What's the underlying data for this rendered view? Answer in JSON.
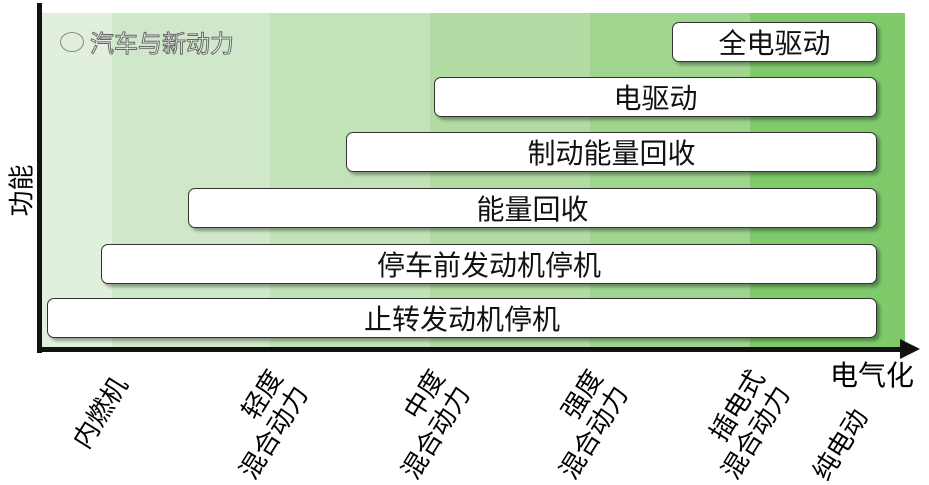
{
  "y_axis_label": "功能",
  "x_axis_label": "电气化",
  "categories": [
    {
      "lines": [
        "内燃机"
      ]
    },
    {
      "lines": [
        "轻度",
        "混合动力"
      ]
    },
    {
      "lines": [
        "中度",
        "混合动力"
      ]
    },
    {
      "lines": [
        "强度",
        "混合动力"
      ]
    },
    {
      "lines": [
        "插电式",
        "混合动力"
      ]
    },
    {
      "lines": [
        "纯电动"
      ]
    }
  ],
  "band_colors": [
    "#e1f0dd",
    "#cfe8c9",
    "#c2e3b7",
    "#b1dba3",
    "#9fd58f",
    "#7fcb6c"
  ],
  "functions": [
    {
      "label": "全电驱动",
      "from_category": "纯电动"
    },
    {
      "label": "电驱动",
      "from_category": "强度混合动力"
    },
    {
      "label": "制动能量回收",
      "from_category": "中度混合动力"
    },
    {
      "label": "能量回收",
      "from_category": "轻度混合动力"
    },
    {
      "label": "停车前发动机停机",
      "from_category": "内燃机"
    },
    {
      "label": "止转发动机停机",
      "from_category": "内燃机"
    }
  ],
  "watermark": {
    "text": "汽车与新动力",
    "icon": "wechat-icon"
  }
}
